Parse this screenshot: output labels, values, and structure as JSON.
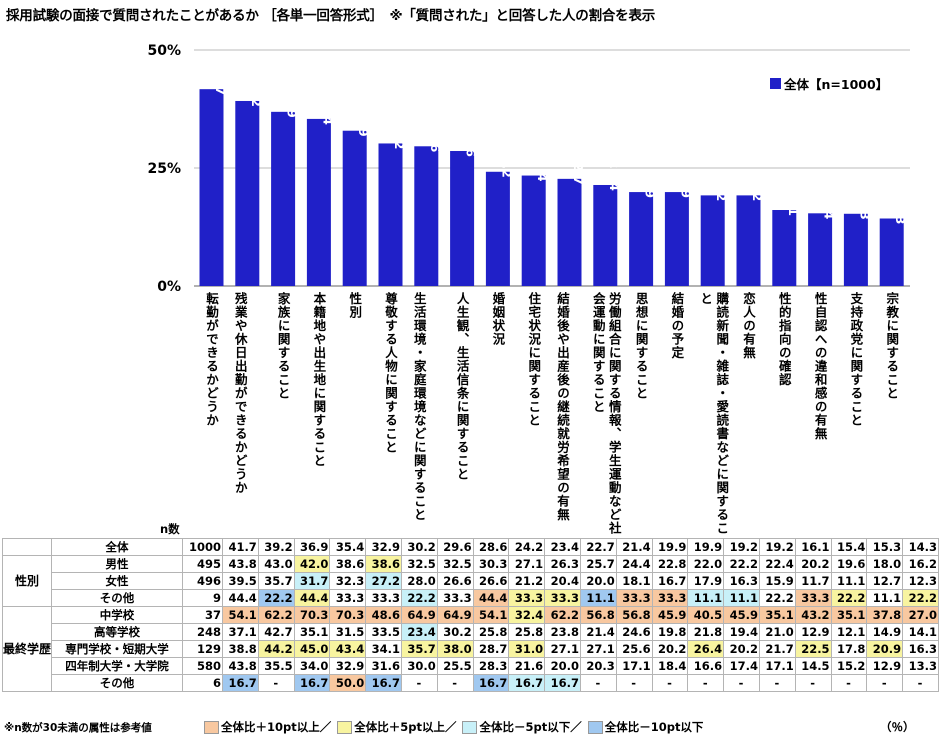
{
  "title": "採用試験の面接で質問されたことがあるか ［各単一回答形式］　※「質問された」と回答した人の割合を表示",
  "chart_data": {
    "type": "bar",
    "categories": [
      "転勤ができるかどうか",
      "残業や休日出勤ができるかどうか",
      "家族に関すること",
      "本籍地や出生地に関すること",
      "性別",
      "尊敬する人物に関すること",
      "生活環境・家庭環境などに関すること",
      "人生観、生活信条に関すること",
      "婚姻状況",
      "住宅状況に関すること",
      "結婚後や出産後の継続就労希望の有無",
      "労働組合に関する情報、学生運動など社会運動に関すること",
      "思想に関すること",
      "結婚の予定",
      "購読新聞・雑誌・愛読書などに関すること",
      "恋人の有無",
      "性的指向の確認",
      "性自認への違和感の有無",
      "支持政党に関すること",
      "宗教に関すること"
    ],
    "series": [
      {
        "name": "全体【n=1000】",
        "values": [
          41.7,
          39.2,
          36.9,
          35.4,
          32.9,
          30.2,
          29.6,
          28.6,
          24.2,
          23.4,
          22.7,
          21.4,
          19.9,
          19.9,
          19.2,
          19.2,
          16.1,
          15.4,
          15.3,
          14.3
        ]
      }
    ],
    "ylim": [
      0,
      50
    ],
    "yticks": [
      "0%",
      "25%",
      "50%"
    ],
    "legend": "top-right",
    "bar_color": "#2020c8"
  },
  "legend_label": "全体【n=1000】",
  "table": {
    "n_header": "n数",
    "rows": [
      {
        "group": "",
        "label": "全体",
        "n": "1000",
        "values": [
          "41.7",
          "39.2",
          "36.9",
          "35.4",
          "32.9",
          "30.2",
          "29.6",
          "28.6",
          "24.2",
          "23.4",
          "22.7",
          "21.4",
          "19.9",
          "19.9",
          "19.2",
          "19.2",
          "16.1",
          "15.4",
          "15.3",
          "14.3"
        ],
        "levels": [
          "",
          "",
          "",
          "",
          "",
          "",
          "",
          "",
          "",
          "",
          "",
          "",
          "",
          "",
          "",
          "",
          "",
          "",
          "",
          ""
        ]
      },
      {
        "group": "性別",
        "label": "男性",
        "n": "495",
        "values": [
          "43.8",
          "43.0",
          "42.0",
          "38.6",
          "38.6",
          "32.5",
          "32.5",
          "30.3",
          "27.1",
          "26.3",
          "25.7",
          "24.4",
          "22.8",
          "22.0",
          "22.2",
          "22.4",
          "20.2",
          "19.6",
          "18.0",
          "16.2"
        ],
        "levels": [
          "",
          "",
          "p5",
          "",
          "p5",
          "",
          "",
          "",
          "",
          "",
          "",
          "",
          "",
          "",
          "",
          "",
          "",
          "",
          "",
          ""
        ]
      },
      {
        "group": "性別",
        "label": "女性",
        "n": "496",
        "values": [
          "39.5",
          "35.7",
          "31.7",
          "32.3",
          "27.2",
          "28.0",
          "26.6",
          "26.6",
          "21.2",
          "20.4",
          "20.0",
          "18.1",
          "16.7",
          "17.9",
          "16.3",
          "15.9",
          "11.7",
          "11.1",
          "12.7",
          "12.3"
        ],
        "levels": [
          "",
          "",
          "m5",
          "",
          "m5",
          "",
          "",
          "",
          "",
          "",
          "",
          "",
          "",
          "",
          "",
          "",
          "",
          "",
          "",
          ""
        ]
      },
      {
        "group": "性別",
        "label": "その他",
        "n": "9",
        "values": [
          "44.4",
          "22.2",
          "44.4",
          "33.3",
          "33.3",
          "22.2",
          "33.3",
          "44.4",
          "33.3",
          "33.3",
          "11.1",
          "33.3",
          "33.3",
          "11.1",
          "11.1",
          "22.2",
          "33.3",
          "22.2",
          "11.1",
          "22.2"
        ],
        "levels": [
          "",
          "m10",
          "p5",
          "",
          "",
          "m5",
          "",
          "p10",
          "p5",
          "p5",
          "m10",
          "p10",
          "p10",
          "m5",
          "m5",
          "",
          "p10",
          "p5",
          "",
          "p5"
        ]
      },
      {
        "group": "最終学歴",
        "label": "中学校",
        "n": "37",
        "values": [
          "54.1",
          "62.2",
          "70.3",
          "70.3",
          "48.6",
          "64.9",
          "64.9",
          "54.1",
          "32.4",
          "62.2",
          "56.8",
          "56.8",
          "45.9",
          "40.5",
          "45.9",
          "35.1",
          "43.2",
          "35.1",
          "37.8",
          "27.0"
        ],
        "levels": [
          "p10",
          "p10",
          "p10",
          "p10",
          "p10",
          "p10",
          "p10",
          "p10",
          "p5",
          "p10",
          "p10",
          "p10",
          "p10",
          "p10",
          "p10",
          "p10",
          "p10",
          "p10",
          "p10",
          "p10"
        ]
      },
      {
        "group": "最終学歴",
        "label": "高等学校",
        "n": "248",
        "values": [
          "37.1",
          "42.7",
          "35.1",
          "31.5",
          "33.5",
          "23.4",
          "30.2",
          "25.8",
          "25.8",
          "23.8",
          "21.4",
          "24.6",
          "19.8",
          "21.8",
          "19.4",
          "21.0",
          "12.9",
          "12.1",
          "14.9",
          "14.1"
        ],
        "levels": [
          "",
          "",
          "",
          "",
          "",
          "m5",
          "",
          "",
          "",
          "",
          "",
          "",
          "",
          "",
          "",
          "",
          "",
          "",
          "",
          ""
        ]
      },
      {
        "group": "最終学歴",
        "label": "専門学校・短期大学",
        "n": "129",
        "values": [
          "38.8",
          "44.2",
          "45.0",
          "43.4",
          "34.1",
          "35.7",
          "38.0",
          "28.7",
          "31.0",
          "27.1",
          "27.1",
          "25.6",
          "20.2",
          "26.4",
          "20.2",
          "21.7",
          "22.5",
          "17.8",
          "20.9",
          "16.3"
        ],
        "levels": [
          "",
          "p5",
          "p5",
          "p5",
          "",
          "p5",
          "p5",
          "",
          "p5",
          "",
          "",
          "",
          "",
          "p5",
          "",
          "",
          "p5",
          "",
          "p5",
          ""
        ]
      },
      {
        "group": "最終学歴",
        "label": "四年制大学・大学院",
        "n": "580",
        "values": [
          "43.8",
          "35.5",
          "34.0",
          "32.9",
          "31.6",
          "30.0",
          "25.5",
          "28.3",
          "21.6",
          "20.0",
          "20.3",
          "17.1",
          "18.4",
          "16.6",
          "17.4",
          "17.1",
          "14.5",
          "15.2",
          "12.9",
          "13.3"
        ],
        "levels": [
          "",
          "",
          "",
          "",
          "",
          "",
          "",
          "",
          "",
          "",
          "",
          "",
          "",
          "",
          "",
          "",
          "",
          "",
          "",
          ""
        ]
      },
      {
        "group": "最終学歴",
        "label": "その他",
        "n": "6",
        "values": [
          "16.7",
          "-",
          "16.7",
          "50.0",
          "16.7",
          "-",
          "-",
          "16.7",
          "16.7",
          "16.7",
          "-",
          "-",
          "-",
          "-",
          "-",
          "-",
          "-",
          "-",
          "-",
          "-"
        ],
        "levels": [
          "m10",
          "",
          "m10",
          "p10",
          "m10",
          "",
          "",
          "m10",
          "m5",
          "m5",
          "",
          "",
          "",
          "",
          "",
          "",
          "",
          "",
          "",
          ""
        ]
      }
    ]
  },
  "footnote": "※n数が30未満の属性は参考値",
  "color_legend": [
    {
      "label": "全体比＋10pt以上／",
      "color": "#f8c8a0"
    },
    {
      "label": "全体比＋5pt以上／",
      "color": "#f8f4a0"
    },
    {
      "label": "全体比－5pt以下／",
      "color": "#c8f0f8"
    },
    {
      "label": "全体比－10pt以下",
      "color": "#a0c8f0"
    }
  ],
  "unit": "（％）"
}
